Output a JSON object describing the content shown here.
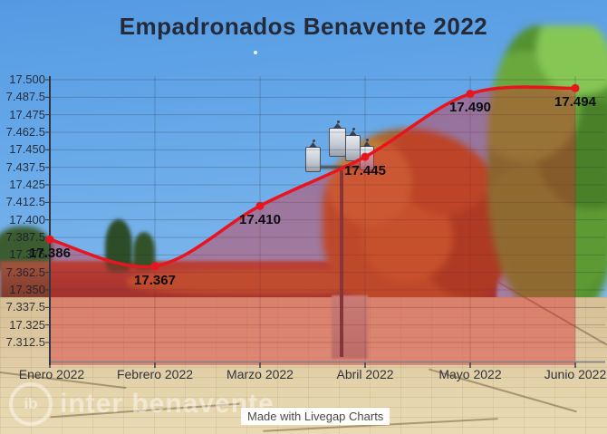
{
  "title": "Empadronados Benavente 2022",
  "chart_data": {
    "type": "line",
    "title": "Empadronados Benavente 2022",
    "categories": [
      "Enero 2022",
      "Febrero 2022",
      "Marzo 2022",
      "Abril 2022",
      "Mayo 2022",
      "Junio 2022"
    ],
    "series": [
      {
        "name": "Empadronados",
        "values": [
          17386,
          17367,
          17410,
          17445,
          17490,
          17494
        ]
      }
    ],
    "point_labels": [
      "17.386",
      "17.367",
      "17.410",
      "17.445",
      "17.490",
      "17.494"
    ],
    "y_tick_labels": [
      "17.500",
      "7.487.5",
      "17.475",
      "7.462.5",
      "17.450",
      "7.437.5",
      "17.425",
      "7.412.5",
      "17.400",
      "7.387.5",
      "17.375",
      "7.362.5",
      "17.350",
      "7.337.5",
      "17.325",
      "7.312.5"
    ],
    "ylim": [
      17312.5,
      17500
    ],
    "y_step": 12.5,
    "grid": true,
    "legend": "none",
    "line_color": "#e8151f",
    "fill_color": "rgba(219,35,45,0.40)",
    "marker_color": "#e8151f"
  },
  "watermark": {
    "logo_text": "ib",
    "text": "inter benavente"
  },
  "badge": {
    "text": "Made with Livegap Charts"
  }
}
